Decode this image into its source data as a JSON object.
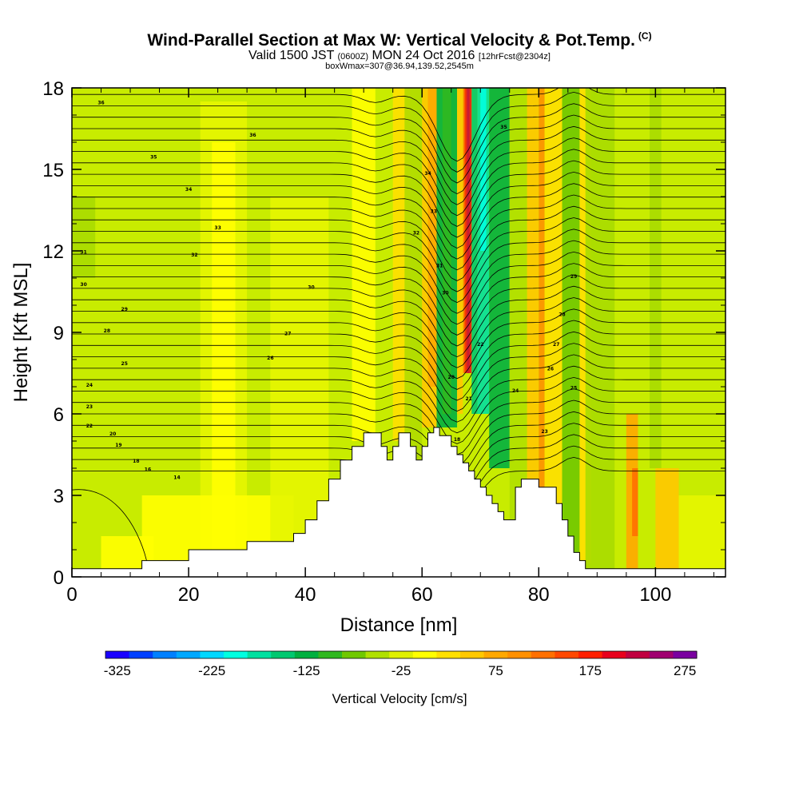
{
  "title": {
    "main": "Wind-Parallel Section at Max W: Vertical Velocity & Pot.Temp.",
    "copyright": "(C)",
    "valid_prefix": "Valid 1500 JST",
    "valid_utc": "(0600Z)",
    "valid_date": "MON 24 Oct 2016",
    "forecast": "[12hrFcst@2304z]",
    "box_info": "boxWmax=307@36.94,139.52,2545m"
  },
  "chart_data": {
    "type": "heatmap",
    "title": "Wind-Parallel Section at Max W: Vertical Velocity & Pot.Temp.",
    "xlabel": "Distance [nm]",
    "ylabel": "Height [Kft MSL]",
    "xlim": [
      0,
      112
    ],
    "ylim": [
      0,
      18
    ],
    "xticks": [
      0,
      20,
      40,
      60,
      80,
      100
    ],
    "yticks": [
      0,
      3,
      6,
      9,
      12,
      15,
      18
    ],
    "colorbar": {
      "label": "Vertical Velocity [cm/s]",
      "tick_labels": [
        "-325",
        "-225",
        "-125",
        "-25",
        "75",
        "175",
        "275"
      ],
      "colors": [
        "#1a00ff",
        "#0040ff",
        "#0080ff",
        "#00a8ff",
        "#00d8ff",
        "#00ffe0",
        "#00e0a0",
        "#00c870",
        "#00b040",
        "#30b820",
        "#70c800",
        "#b0e000",
        "#e0f000",
        "#ffff00",
        "#ffe000",
        "#ffc800",
        "#ffa800",
        "#ff9000",
        "#ff7000",
        "#ff4800",
        "#ff2000",
        "#e8001c",
        "#c00040",
        "#a00070",
        "#7a00a0"
      ]
    },
    "terrain_profile": {
      "x": [
        0,
        12,
        12,
        20,
        20,
        30,
        30,
        38,
        38,
        40,
        40,
        42,
        42,
        44,
        44,
        46,
        46,
        48,
        48,
        50,
        50,
        53,
        53,
        54,
        54,
        55,
        55,
        56,
        56,
        58,
        58,
        59,
        59,
        60,
        60,
        61,
        61,
        62,
        62,
        63,
        63,
        65,
        65,
        66,
        66,
        67,
        67,
        68,
        68,
        69,
        69,
        70,
        70,
        71,
        71,
        72,
        72,
        73,
        73,
        74,
        74,
        75,
        75,
        76,
        76,
        77,
        77,
        78,
        78,
        79,
        79,
        80,
        80,
        83,
        83,
        84,
        84,
        85,
        85,
        86,
        86,
        87,
        87,
        88,
        88,
        112
      ],
      "height_kft": [
        0.3,
        0.3,
        0.6,
        0.6,
        1.0,
        1.0,
        1.3,
        1.3,
        1.6,
        1.6,
        2.1,
        2.1,
        2.8,
        2.8,
        3.6,
        3.6,
        4.3,
        4.3,
        4.8,
        4.8,
        5.3,
        5.3,
        4.8,
        4.8,
        4.3,
        4.3,
        4.8,
        4.8,
        5.3,
        5.3,
        4.8,
        4.8,
        4.3,
        4.3,
        4.8,
        4.8,
        5.3,
        5.3,
        5.5,
        5.5,
        5.2,
        5.2,
        4.8,
        4.8,
        4.5,
        4.5,
        4.2,
        4.2,
        3.9,
        3.9,
        3.6,
        3.6,
        3.3,
        3.3,
        3.0,
        3.0,
        2.7,
        2.7,
        2.4,
        2.4,
        2.1,
        2.1,
        2.1,
        2.1,
        3.3,
        3.3,
        3.6,
        3.6,
        3.6,
        3.6,
        3.6,
        3.6,
        3.3,
        3.3,
        2.7,
        2.7,
        2.1,
        2.1,
        1.5,
        1.5,
        0.9,
        0.9,
        0.6,
        0.6,
        0.3,
        0.3
      ]
    },
    "isentrope_labels": [
      "36",
      "36",
      "35",
      "34",
      "33",
      "32",
      "31",
      "30",
      "30",
      "29",
      "28",
      "27",
      "26",
      "25",
      "24",
      "23",
      "22",
      "20",
      "19",
      "18",
      "16",
      "14",
      "35",
      "34",
      "33",
      "32",
      "31",
      "30",
      "29",
      "28",
      "27",
      "26",
      "25",
      "24",
      "23",
      "22",
      "21",
      "20",
      "18"
    ]
  }
}
